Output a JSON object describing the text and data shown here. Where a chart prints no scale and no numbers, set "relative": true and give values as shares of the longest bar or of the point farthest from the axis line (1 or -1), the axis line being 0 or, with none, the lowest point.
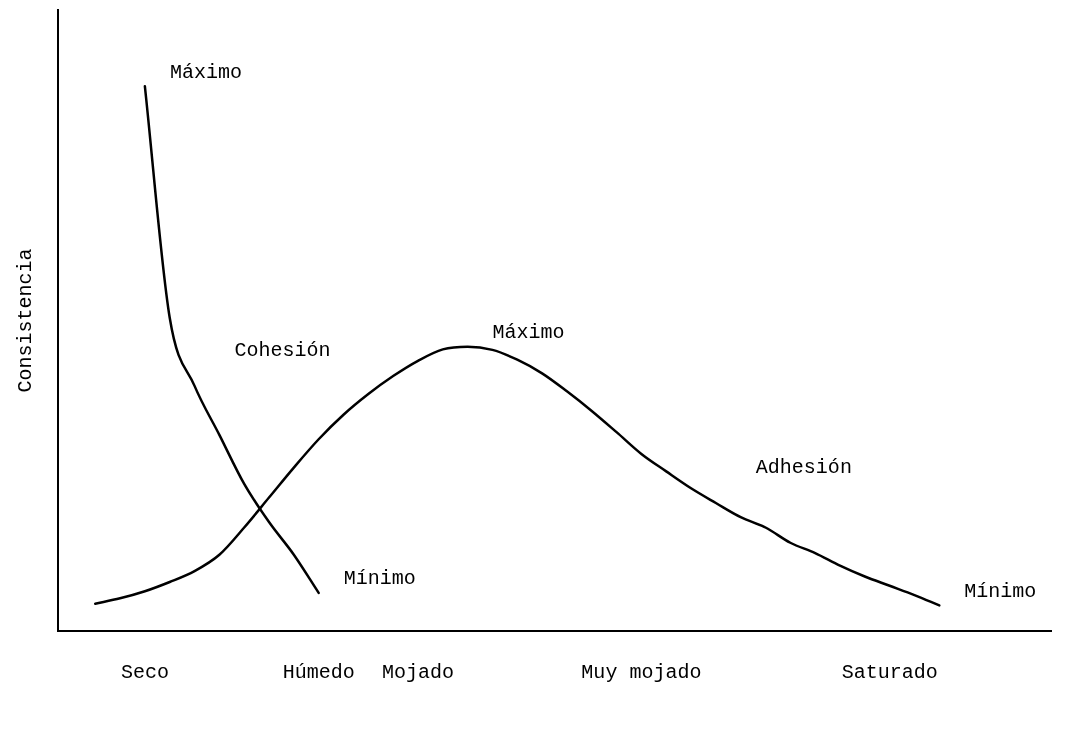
{
  "chart_data": {
    "type": "line",
    "relative": true,
    "ylabel": "Consistencia",
    "categories": [
      null,
      null,
      null,
      "Seco",
      null,
      null,
      null,
      null,
      null,
      null,
      "Húmedo",
      null,
      null,
      null,
      "Mojado",
      null,
      null,
      null,
      null,
      null,
      null,
      null,
      null,
      "Muy mojado",
      null,
      null,
      null,
      null,
      null,
      null,
      null,
      null,
      null,
      "Saturado",
      null,
      null,
      null,
      null,
      null,
      null
    ],
    "grid": false,
    "legend": false,
    "marker": "none",
    "line_style": "solid",
    "series": [
      {
        "name": "Cohesión",
        "color": "#000000",
        "values": [
          null,
          null,
          null,
          1.0,
          0.575,
          0.45,
          0.36,
          0.27,
          0.2,
          0.14,
          0.07,
          null,
          null,
          null,
          null,
          null,
          null,
          null,
          null,
          null,
          null,
          null,
          null,
          null,
          null,
          null,
          null,
          null,
          null,
          null,
          null,
          null,
          null,
          null,
          null,
          null,
          null,
          null,
          null,
          null
        ]
      },
      {
        "name": "Adhesión",
        "color": "#000000",
        "values": [
          null,
          0.05,
          0.06,
          0.073,
          0.09,
          0.11,
          0.14,
          0.19,
          0.245,
          0.3,
          0.352,
          0.397,
          0.435,
          0.468,
          0.496,
          0.517,
          0.522,
          0.516,
          0.498,
          0.473,
          0.44,
          0.404,
          0.365,
          0.325,
          0.293,
          0.262,
          0.235,
          0.209,
          0.19,
          0.162,
          0.143,
          0.12,
          0.1,
          0.083,
          0.066,
          0.047,
          null,
          null,
          null,
          null
        ]
      }
    ],
    "annotations": [
      "Máximo",
      "Mínimo",
      "Máximo",
      "Mínimo"
    ]
  }
}
